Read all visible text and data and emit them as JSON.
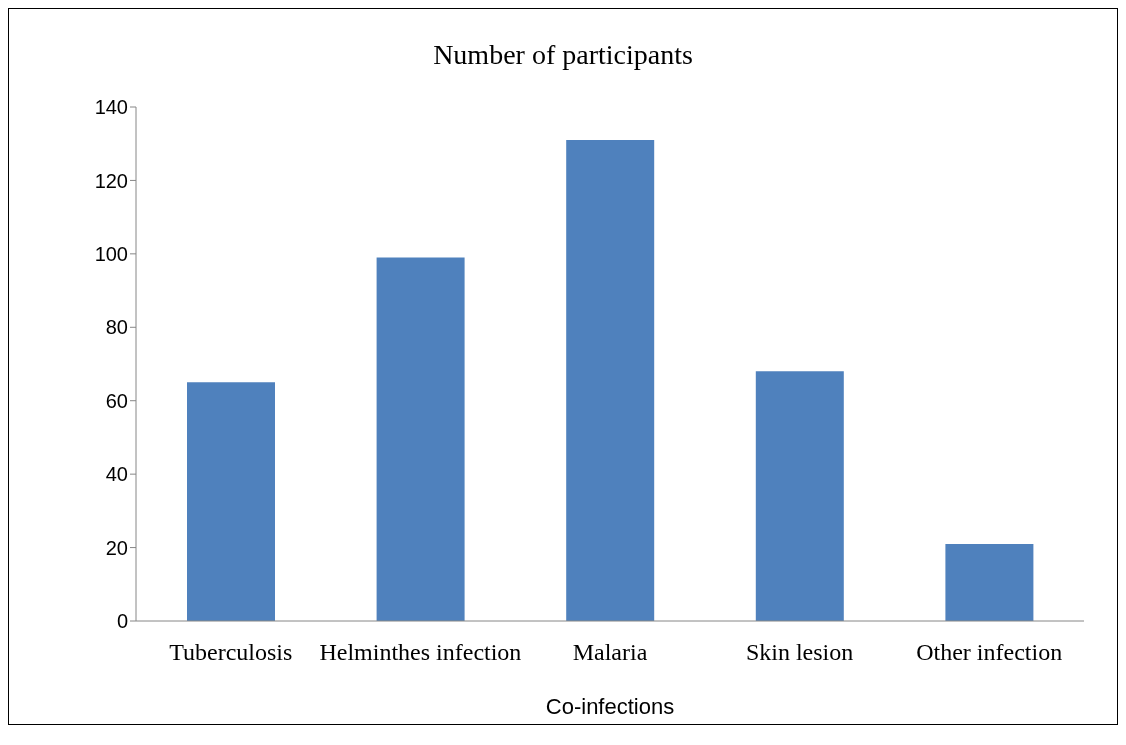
{
  "chart_data": {
    "type": "bar",
    "title": "Number of participants",
    "xlabel": "Co-infections",
    "categories": [
      "Tuberculosis",
      "Helminthes infection",
      "Malaria",
      "Skin lesion",
      "Other infection"
    ],
    "values": [
      65,
      99,
      131,
      68,
      21
    ],
    "color": "#4f81bd",
    "ylim": [
      0,
      140
    ],
    "yticks": [
      0,
      20,
      40,
      60,
      80,
      100,
      120,
      140
    ],
    "grid": false,
    "legend": false
  }
}
